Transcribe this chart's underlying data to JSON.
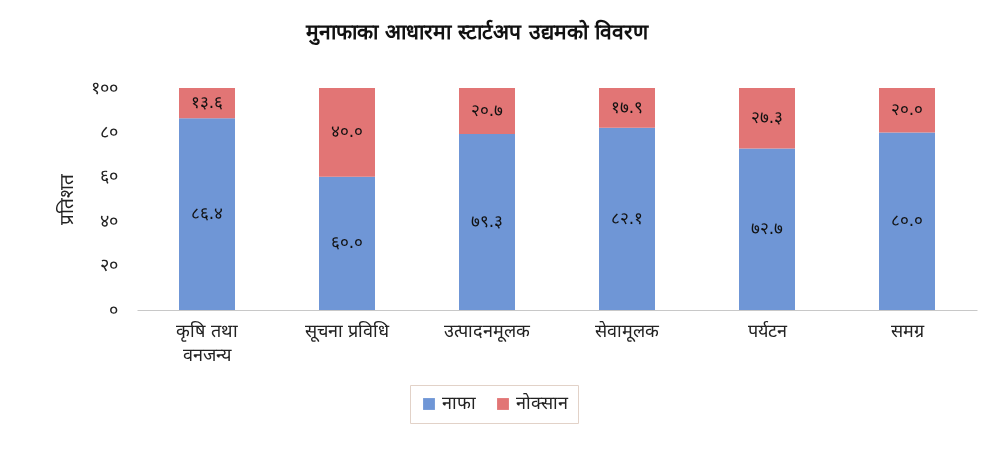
{
  "chart_data": {
    "type": "bar",
    "title": "मुनाफाका आधारमा स्टार्टअप उद्यमको विवरण",
    "ylabel": "प्रतिशत",
    "categories": [
      "कृषि तथा वनजन्य",
      "सूचना प्रविधि",
      "उत्पादनमूलक",
      "सेवामूलक",
      "पर्यटन",
      "समग्र"
    ],
    "series": [
      {
        "name": "नाफा",
        "color": "#6f96d6",
        "values": [
          86.4,
          60.0,
          79.3,
          82.1,
          72.7,
          80.0
        ],
        "value_labels": [
          "८६.४",
          "६०.०",
          "७९.३",
          "८२.१",
          "७२.७",
          "८०.०"
        ]
      },
      {
        "name": "नोक्सान",
        "color": "#e27575",
        "values": [
          13.6,
          40.0,
          20.7,
          17.9,
          27.3,
          20.0
        ],
        "value_labels": [
          "१३.६",
          "४०.०",
          "२०.७",
          "१७.९",
          "२७.३",
          "२०.०"
        ]
      }
    ],
    "stacked": true,
    "ylim": [
      0,
      100
    ],
    "yticks": [
      {
        "value": 0,
        "label": "०"
      },
      {
        "value": 20,
        "label": "२०"
      },
      {
        "value": 40,
        "label": "४०"
      },
      {
        "value": 60,
        "label": "६०"
      },
      {
        "value": 80,
        "label": "८०"
      },
      {
        "value": 100,
        "label": "१००"
      }
    ],
    "grid": false,
    "legend": "bottom"
  }
}
